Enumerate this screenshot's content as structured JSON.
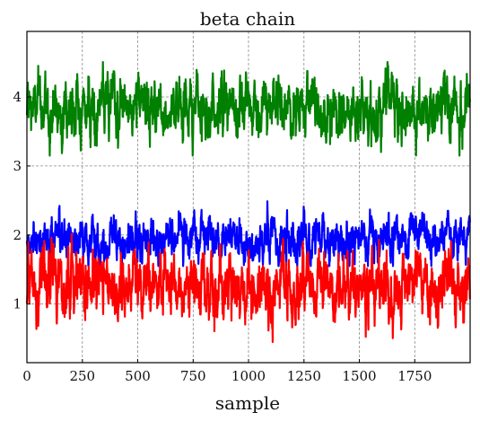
{
  "chart_data": {
    "type": "line",
    "title": "beta chain",
    "xlabel": "sample",
    "ylabel": "",
    "xlim": [
      0,
      2000
    ],
    "ylim": [
      0.15,
      4.95
    ],
    "xticks": [
      0,
      250,
      500,
      750,
      1000,
      1250,
      1500,
      1750
    ],
    "yticks": [
      1,
      2,
      3,
      4
    ],
    "grid": true,
    "legend": "none",
    "n_samples": 2000,
    "series": [
      {
        "color": "#008000",
        "mean": 3.85,
        "sd": 0.22,
        "min": 3.15,
        "max": 4.72
      },
      {
        "color": "#0000ff",
        "mean": 1.93,
        "sd": 0.16,
        "min": 1.55,
        "max": 2.58
      },
      {
        "color": "#ff0000",
        "mean": 1.25,
        "sd": 0.24,
        "min": 0.38,
        "max": 2.15
      }
    ]
  }
}
